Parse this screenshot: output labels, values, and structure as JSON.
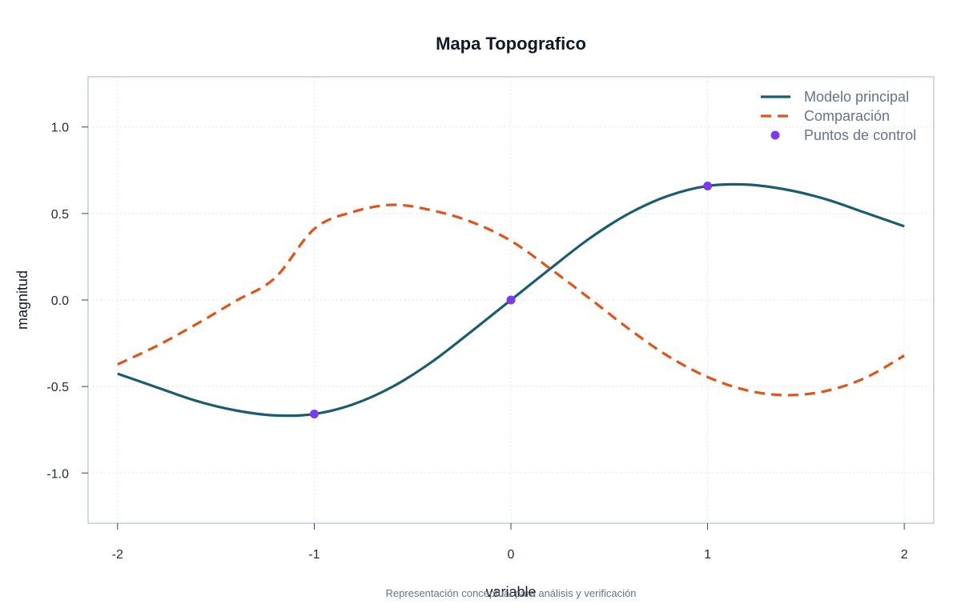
{
  "chart_data": {
    "type": "line",
    "title": "Mapa Topografico",
    "xlabel": "variable",
    "ylabel": "magnitud",
    "caption": "Representación conceptual para análisis y verificación",
    "xlim": [
      -2.15,
      2.15
    ],
    "ylim": [
      -1.29,
      1.29
    ],
    "x_ticks": [
      -2,
      -1,
      0,
      1,
      2
    ],
    "x_tick_labels": [
      "-2",
      "-1",
      "0",
      "1",
      "2"
    ],
    "y_ticks": [
      -1.0,
      -0.5,
      0.0,
      0.5,
      1.0
    ],
    "y_tick_labels": [
      "-1.0",
      "-0.5",
      "0.0",
      "0.5",
      "1.0"
    ],
    "grid": true,
    "legend_position": "top-right",
    "series": [
      {
        "name": "Modelo principal",
        "style": "solid",
        "color": "#1a5c70",
        "x": [
          -2.0,
          -1.8,
          -1.6,
          -1.4,
          -1.2,
          -1.0,
          -0.8,
          -0.6,
          -0.4,
          -0.2,
          0.0,
          0.2,
          0.4,
          0.6,
          0.8,
          1.0,
          1.2,
          1.4,
          1.6,
          1.8,
          2.0
        ],
        "y": [
          -0.426,
          -0.505,
          -0.583,
          -0.638,
          -0.667,
          -0.659,
          -0.602,
          -0.5,
          -0.356,
          -0.181,
          0.0,
          0.181,
          0.356,
          0.5,
          0.602,
          0.659,
          0.667,
          0.638,
          0.583,
          0.505,
          0.426
        ]
      },
      {
        "name": "Comparación",
        "style": "dashed",
        "color": "#e0531a",
        "x": [
          -2.0,
          -1.8,
          -1.6,
          -1.4,
          -1.2,
          -1.0,
          -0.8,
          -0.6,
          -0.4,
          -0.2,
          0.0,
          0.2,
          0.4,
          0.6,
          0.8,
          1.0,
          1.2,
          1.4,
          1.6,
          1.8,
          2.0
        ],
        "y": [
          -0.372,
          -0.265,
          -0.14,
          -0.006,
          0.127,
          0.411,
          0.51,
          0.55,
          0.518,
          0.451,
          0.342,
          0.181,
          0.009,
          -0.167,
          -0.325,
          -0.445,
          -0.522,
          -0.55,
          -0.526,
          -0.451,
          -0.321
        ]
      },
      {
        "name": "Puntos de control",
        "style": "markers",
        "color": "#7c3aed",
        "x": [
          -1,
          0,
          1
        ],
        "y": [
          -0.659,
          0.0,
          0.659
        ]
      }
    ]
  }
}
